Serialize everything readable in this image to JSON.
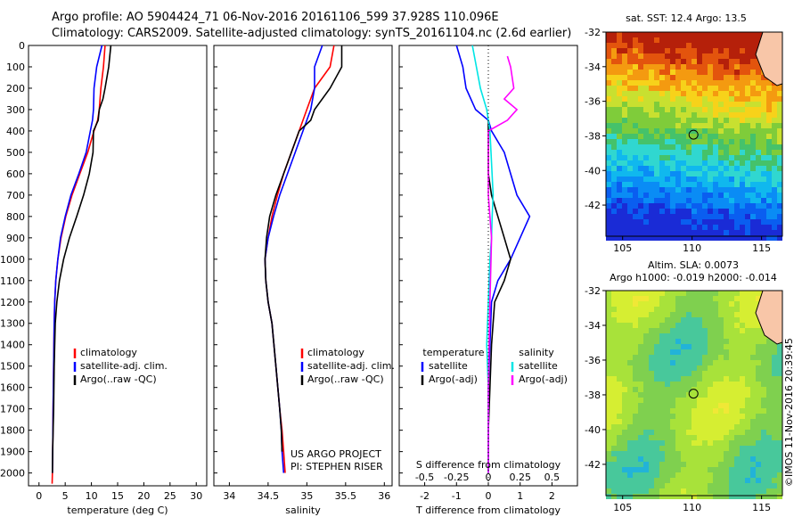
{
  "header": {
    "line1": "Argo profile: AO 5904424_71 06-Nov-2016 20161106_599 37.928S 110.096E",
    "line2": "Climatology: CARS2009. Satellite-adjusted climatology: synTS_20161104.nc (2.6d earlier)"
  },
  "credit": "©IMOS 11-Nov-2016 20:39:45",
  "colors": {
    "climatology": "#ff0000",
    "satellite": "#0000ff",
    "argo": "#000000",
    "sal_satellite": "#00e5e5",
    "sal_argo": "#ff00ff"
  },
  "chart_data": [
    {
      "type": "line",
      "id": "temperature",
      "xlabel": "temperature (deg C)",
      "ylabel": "",
      "xlim": [
        -2,
        32
      ],
      "ylim": [
        2060,
        0
      ],
      "xticks": [
        "0",
        "5",
        "10",
        "15",
        "20",
        "25",
        "30"
      ],
      "yticks": [
        "0",
        "100",
        "200",
        "300",
        "400",
        "500",
        "600",
        "700",
        "800",
        "900",
        "1000",
        "1100",
        "1200",
        "1300",
        "1400",
        "1500",
        "1600",
        "1700",
        "1800",
        "1900",
        "2000"
      ],
      "legend": [
        "climatology",
        "satellite-adj. clim.",
        "Argo(..raw -QC)"
      ],
      "series": [
        {
          "name": "climatology",
          "x": [
            12.6,
            12.3,
            11.8,
            11.5,
            11.2,
            10.5,
            9.3,
            7.8,
            6.3,
            5.1,
            4.2,
            3.6,
            3.2,
            3.0,
            2.9,
            2.8,
            2.7,
            2.65,
            2.6,
            2.55,
            2.5
          ],
          "y": [
            0,
            100,
            200,
            300,
            350,
            400,
            500,
            600,
            700,
            800,
            900,
            1000,
            1100,
            1200,
            1300,
            1500,
            1700,
            1800,
            1900,
            2000,
            2050
          ]
        },
        {
          "name": "satellite-adj. clim.",
          "x": [
            12.0,
            11.0,
            10.5,
            10.4,
            10.2,
            9.8,
            9.0,
            7.6,
            6.1,
            5.0,
            4.1,
            3.6,
            3.2,
            3.0,
            2.9,
            2.8,
            2.7,
            2.65,
            2.6,
            2.55
          ],
          "y": [
            0,
            100,
            200,
            300,
            350,
            400,
            500,
            600,
            700,
            800,
            900,
            1000,
            1100,
            1200,
            1300,
            1500,
            1700,
            1800,
            1900,
            2000
          ]
        },
        {
          "name": "Argo(..raw -QC)",
          "x": [
            13.7,
            13.3,
            12.6,
            12.2,
            11.5,
            11.3,
            10.4,
            10.3,
            9.6,
            8.5,
            7.2,
            5.8,
            4.7,
            3.9,
            3.4,
            3.1,
            2.9,
            2.8,
            2.7,
            2.6,
            2.55
          ],
          "y": [
            0,
            100,
            200,
            250,
            300,
            350,
            400,
            500,
            600,
            700,
            800,
            900,
            1000,
            1100,
            1200,
            1300,
            1500,
            1700,
            1800,
            1900,
            2000
          ]
        }
      ]
    },
    {
      "type": "line",
      "id": "salinity",
      "xlabel": "salinity",
      "ylabel": "",
      "xlim": [
        33.8,
        36.1
      ],
      "ylim": [
        2060,
        0
      ],
      "xticks": [
        "34",
        "34.5",
        "35",
        "35.5",
        "36"
      ],
      "legend": [
        "climatology",
        "satellite-adj. clim.",
        "Argo(..raw -QC)"
      ],
      "annotation": [
        "US ARGO PROJECT",
        "PI: STEPHEN RISER"
      ],
      "series": [
        {
          "name": "climatology",
          "x": [
            35.35,
            35.3,
            35.1,
            35.0,
            34.95,
            34.9,
            34.8,
            34.7,
            34.62,
            34.55,
            34.5,
            34.46,
            34.47,
            34.5,
            34.55,
            34.6,
            34.65,
            34.68,
            34.7,
            34.72
          ],
          "y": [
            0,
            100,
            200,
            300,
            350,
            400,
            500,
            600,
            700,
            800,
            900,
            1000,
            1100,
            1200,
            1300,
            1500,
            1700,
            1800,
            1900,
            2000
          ]
        },
        {
          "name": "satellite-adj. clim.",
          "x": [
            35.2,
            35.1,
            35.1,
            35.05,
            35.0,
            34.95,
            34.85,
            34.75,
            34.65,
            34.57,
            34.5,
            34.46,
            34.47,
            34.5,
            34.55,
            34.6,
            34.65,
            34.67,
            34.68,
            34.7
          ],
          "y": [
            0,
            100,
            200,
            300,
            350,
            400,
            500,
            600,
            700,
            800,
            900,
            1000,
            1100,
            1200,
            1300,
            1500,
            1700,
            1800,
            1900,
            2000
          ]
        },
        {
          "name": "Argo(..raw -QC)",
          "x": [
            35.45,
            35.45,
            35.3,
            35.1,
            35.05,
            34.9,
            34.8,
            34.7,
            34.6,
            34.52,
            34.48,
            34.46,
            34.47,
            34.5,
            34.55,
            34.6,
            34.65,
            34.67,
            34.68
          ],
          "y": [
            0,
            100,
            200,
            300,
            350,
            400,
            500,
            600,
            700,
            800,
            900,
            1000,
            1100,
            1200,
            1300,
            1500,
            1700,
            1800,
            1900
          ]
        }
      ]
    },
    {
      "type": "line",
      "id": "difference",
      "xlabel": "T difference from climatology",
      "xlabel_top": "S difference from climatology",
      "xlim": [
        -2.8,
        2.8
      ],
      "ylim": [
        2060,
        0
      ],
      "xticks": [
        "-2",
        "-1",
        "0",
        "1",
        "2"
      ],
      "xticks_s": [
        "-0.5",
        "-0.25",
        "0",
        "0.25",
        "0.5"
      ],
      "legend_t": {
        "title": "temperature",
        "items": [
          "satellite",
          "Argo(-adj)"
        ]
      },
      "legend_s": {
        "title": "salinity",
        "items": [
          "satellite",
          "Argo(-adj)"
        ]
      },
      "series": [
        {
          "name": "satellite",
          "x": [
            -1.0,
            -0.8,
            -0.7,
            -0.4,
            0.0,
            0.1,
            0.5,
            0.9,
            1.3,
            1.0,
            0.7,
            0.3,
            0.1,
            0.05,
            0.0,
            0.0,
            0.0,
            0.0
          ],
          "y": [
            0,
            100,
            200,
            300,
            350,
            400,
            500,
            700,
            800,
            900,
            1000,
            1100,
            1200,
            1400,
            1600,
            1800,
            1900,
            2000
          ]
        },
        {
          "name": "Argo(-adj)",
          "x": [
            0.0,
            0.0,
            0.0,
            0.1,
            0.3,
            0.5,
            0.7,
            0.5,
            0.2,
            0.1,
            0.05,
            0.0,
            0.0
          ],
          "y": [
            350,
            500,
            600,
            700,
            800,
            900,
            1000,
            1100,
            1200,
            1400,
            1600,
            1800,
            2000
          ]
        },
        {
          "name": "sal_satellite",
          "x": [
            -0.5,
            -0.25,
            -0.05,
            0.05,
            0.15,
            0.12,
            0.1,
            0.05,
            0.0,
            -0.05,
            0.0,
            0.0,
            0.0
          ],
          "y": [
            0,
            200,
            300,
            400,
            700,
            800,
            900,
            1000,
            1200,
            1400,
            1600,
            1800,
            2000
          ]
        },
        {
          "name": "sal_argo",
          "x": [
            0.6,
            0.7,
            0.8,
            0.5,
            0.9,
            0.6,
            0.0,
            0.0,
            0.05,
            0.1,
            0.05,
            0.0,
            0.0
          ],
          "y": [
            50,
            100,
            200,
            250,
            300,
            350,
            400,
            700,
            800,
            900,
            1200,
            1600,
            2000
          ]
        }
      ]
    },
    {
      "type": "heatmap",
      "id": "sst_map",
      "title": "sat. SST: 12.4  Argo: 13.5",
      "xlim": [
        103.8,
        116.5
      ],
      "ylim": [
        -43.8,
        -32
      ],
      "xticks": [
        "105",
        "110",
        "115"
      ],
      "yticks": [
        "-32",
        "-34",
        "-36",
        "-38",
        "-40",
        "-42"
      ],
      "marker": {
        "lon": 110.1,
        "lat": -37.93
      }
    },
    {
      "type": "heatmap",
      "id": "sla_map",
      "title_lines": [
        "Altim. SLA: 0.0073",
        "Argo h1000: -0.019 h2000: -0.014"
      ],
      "xlim": [
        103.8,
        116.5
      ],
      "ylim": [
        -43.8,
        -32
      ],
      "xticks": [
        "105",
        "110",
        "115"
      ],
      "yticks": [
        "-32",
        "-34",
        "-36",
        "-38",
        "-40",
        "-42"
      ],
      "marker": {
        "lon": 110.1,
        "lat": -37.93
      }
    }
  ]
}
